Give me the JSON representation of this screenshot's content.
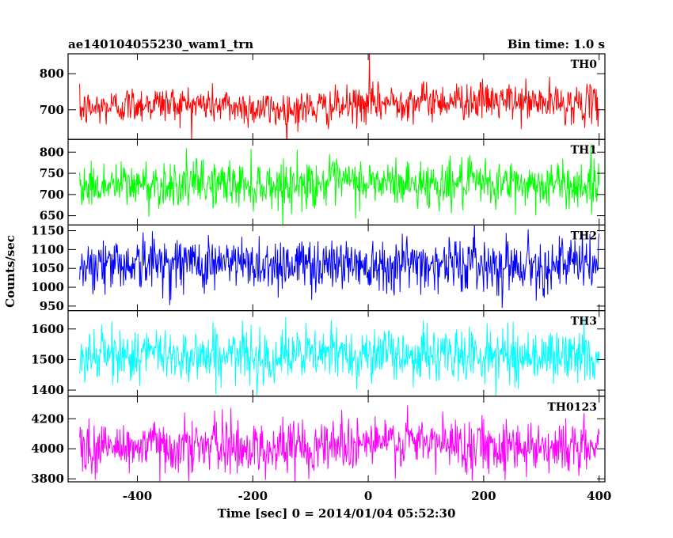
{
  "chart_data": {
    "type": "line",
    "title_left": "ae140104055230_wam1_trn",
    "title_right": "Bin time: 1.0 s",
    "xlabel": "Time [sec] 0 = 2014/01/04 05:52:30",
    "ylabel": "Counts/sec",
    "xlim": [
      -520,
      410
    ],
    "x_data_range": [
      -500,
      400
    ],
    "x_ticks": [
      -400,
      -200,
      0,
      200,
      400
    ],
    "bin_time": 1.0,
    "panels": [
      {
        "name": "TH0",
        "color": "#ff0000",
        "ylim": [
          618,
          855
        ],
        "yticks": [
          700,
          800
        ],
        "mean": 700,
        "noise_sd": 26,
        "trend": [
          0,
          18,
          14,
          0,
          8,
          24,
          26,
          20,
          14
        ],
        "max_point": {
          "x": 2,
          "y": 855
        }
      },
      {
        "name": "TH1",
        "color": "#00ff00",
        "ylim": [
          628,
          830
        ],
        "yticks": [
          650,
          700,
          750,
          800
        ],
        "mean": 720,
        "noise_sd": 28,
        "trend": [
          0,
          4,
          6,
          2,
          8,
          6,
          4,
          4,
          2
        ]
      },
      {
        "name": "TH2",
        "color": "#0000ff",
        "ylim": [
          938,
          1165
        ],
        "yticks": [
          950,
          1000,
          1050,
          1100,
          1150
        ],
        "mean": 1060,
        "noise_sd": 36,
        "trend": [
          0,
          6,
          4,
          0,
          4,
          4,
          2,
          0,
          0
        ]
      },
      {
        "name": "TH3",
        "color": "#00ffff",
        "ylim": [
          1380,
          1660
        ],
        "yticks": [
          1400,
          1500,
          1600
        ],
        "mean": 1510,
        "noise_sd": 44,
        "trend": [
          0,
          8,
          4,
          0,
          10,
          6,
          4,
          2,
          0
        ]
      },
      {
        "name": "TH0123",
        "color": "#ff00ff",
        "ylim": [
          3780,
          4350
        ],
        "yticks": [
          3800,
          4000,
          4200
        ],
        "mean": 4000,
        "noise_sd": 90,
        "trend": [
          0,
          20,
          20,
          0,
          40,
          40,
          30,
          20,
          0
        ]
      }
    ]
  }
}
